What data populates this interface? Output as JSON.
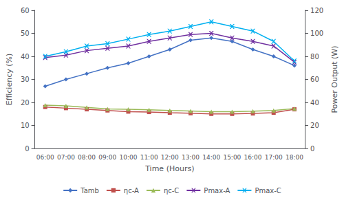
{
  "chart_data": {
    "type": "line",
    "categories": [
      "06:00",
      "07:00",
      "08:00",
      "09:00",
      "10:00",
      "11:00",
      "12:00",
      "13:00",
      "14:00",
      "15:00",
      "16:00",
      "17:00",
      "18:00"
    ],
    "xlabel": "Time (Hours)",
    "ylabel": "Efficiency (%)",
    "y2label": "Power Output (W)",
    "ylim": [
      0,
      60
    ],
    "yticks": [
      0,
      10,
      20,
      30,
      40,
      50,
      60
    ],
    "y2lim": [
      0,
      120
    ],
    "y2ticks": [
      0,
      20,
      40,
      60,
      80,
      100,
      120
    ],
    "grid": false,
    "legend": "bottom",
    "series": [
      {
        "name": "Tamb",
        "color": "#4472C4",
        "marker": "diamond",
        "axis": "y",
        "values": [
          27,
          30,
          32.5,
          35,
          37,
          40,
          43,
          47,
          48,
          46.5,
          43,
          40,
          36
        ]
      },
      {
        "name": "ηc-A",
        "color": "#C0504D",
        "marker": "square",
        "axis": "y",
        "values": [
          18.0,
          17.5,
          17.0,
          16.5,
          16.0,
          15.8,
          15.5,
          15.3,
          15.0,
          15.0,
          15.2,
          15.5,
          17.0
        ]
      },
      {
        "name": "ηc-C",
        "color": "#9BBB59",
        "marker": "triangle",
        "axis": "y",
        "values": [
          18.8,
          18.5,
          17.8,
          17.2,
          17.0,
          16.8,
          16.5,
          16.3,
          16.0,
          16.0,
          16.2,
          16.5,
          17.3
        ]
      },
      {
        "name": "Pmax-A",
        "color": "#7030A0",
        "marker": "x",
        "axis": "y2",
        "values": [
          79,
          81,
          85,
          87,
          89,
          93,
          96,
          99,
          100,
          96,
          93,
          89,
          75
        ]
      },
      {
        "name": "Pmax-C",
        "color": "#00B0F0",
        "marker": "x",
        "axis": "y2",
        "values": [
          80,
          84,
          89,
          91,
          95,
          99,
          102,
          106,
          110,
          106,
          102,
          93,
          76
        ]
      }
    ]
  }
}
